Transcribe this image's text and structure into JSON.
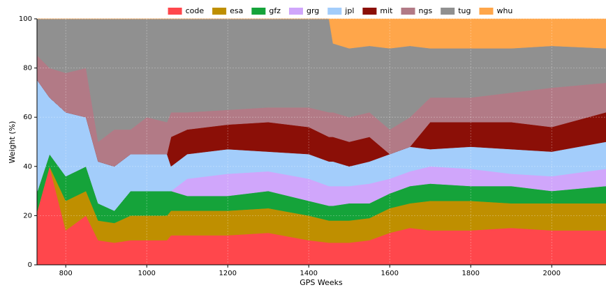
{
  "chart_data": {
    "type": "stacked_area",
    "xlabel": "GPS Weeks",
    "ylabel": "Weight (%)",
    "x": [
      730,
      760,
      800,
      850,
      880,
      920,
      960,
      1000,
      1050,
      1060,
      1100,
      1200,
      1300,
      1400,
      1450,
      1460,
      1500,
      1550,
      1600,
      1650,
      1700,
      1800,
      1900,
      2000,
      2134
    ],
    "series": [
      {
        "name": "code",
        "color": "#ff474c",
        "values": [
          22,
          40,
          14,
          20,
          10,
          9,
          10,
          10,
          10,
          12,
          12,
          12,
          13,
          10,
          9,
          9,
          9,
          10,
          13,
          15,
          14,
          14,
          15,
          14,
          14
        ]
      },
      {
        "name": "esa",
        "color": "#bf8f00",
        "values": [
          0,
          0,
          12,
          10,
          8,
          8,
          10,
          10,
          10,
          10,
          10,
          10,
          10,
          10,
          9,
          9,
          9,
          9,
          10,
          10,
          12,
          12,
          10,
          11,
          11
        ]
      },
      {
        "name": "gfz",
        "color": "#15a33a",
        "values": [
          8,
          5,
          10,
          10,
          7,
          5,
          10,
          10,
          10,
          8,
          6,
          6,
          7,
          6,
          6,
          6,
          7,
          6,
          6,
          7,
          7,
          6,
          7,
          5,
          7
        ]
      },
      {
        "name": "grg",
        "color": "#d0a6fb",
        "values": [
          0,
          0,
          0,
          0,
          0,
          0,
          0,
          0,
          0,
          0,
          7,
          9,
          8,
          9,
          8,
          8,
          7,
          8,
          6,
          6,
          7,
          7,
          5,
          6,
          7
        ]
      },
      {
        "name": "jpl",
        "color": "#a3cdfb",
        "values": [
          45,
          23,
          26,
          20,
          17,
          18,
          15,
          15,
          15,
          10,
          10,
          10,
          8,
          10,
          10,
          10,
          8,
          9,
          10,
          10,
          7,
          9,
          10,
          10,
          11
        ]
      },
      {
        "name": "mit",
        "color": "#8b0f07",
        "values": [
          0,
          0,
          0,
          0,
          0,
          0,
          0,
          0,
          0,
          12,
          10,
          10,
          12,
          11,
          10,
          10,
          10,
          10,
          0,
          0,
          11,
          10,
          11,
          10,
          12
        ]
      },
      {
        "name": "ngs",
        "color": "#b27a86",
        "values": [
          10,
          12,
          16,
          20,
          8,
          15,
          10,
          15,
          13,
          10,
          7,
          6,
          6,
          8,
          10,
          10,
          10,
          10,
          10,
          12,
          10,
          10,
          12,
          16,
          12
        ]
      },
      {
        "name": "tug",
        "color": "#909090",
        "values": [
          15,
          20,
          22,
          20,
          50,
          45,
          45,
          40,
          42,
          38,
          38,
          37,
          36,
          36,
          38,
          28,
          28,
          27,
          33,
          29,
          20,
          20,
          18,
          17,
          14
        ]
      },
      {
        "name": "whu",
        "color": "#ffa64a",
        "values": [
          0,
          0,
          0,
          0,
          0,
          0,
          0,
          0,
          0,
          0,
          0,
          0,
          0,
          0,
          0,
          10,
          12,
          11,
          12,
          11,
          12,
          12,
          12,
          11,
          12
        ]
      }
    ],
    "xlim": [
      729,
      2134
    ],
    "ylim": [
      0,
      100
    ],
    "xticks": [
      800,
      1000,
      1200,
      1400,
      1600,
      1800,
      2000
    ],
    "yticks": [
      0,
      20,
      40,
      60,
      80,
      100
    ],
    "grid": true,
    "legend": "top"
  }
}
